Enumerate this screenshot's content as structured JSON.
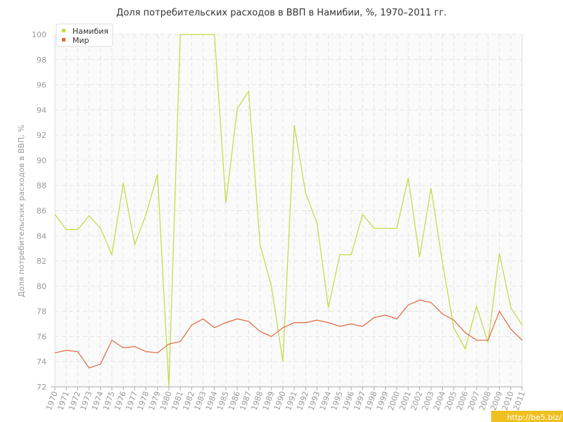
{
  "chart_data": {
    "type": "line",
    "title": "Доля потребительских расходов в ВВП в Намибии, %, 1970–2011 гг.",
    "y_label": "Доля потребительских расходов в ВВП, %",
    "watermark": "http://be5.biz/",
    "x": [
      1970,
      1971,
      1972,
      1973,
      1974,
      1975,
      1976,
      1977,
      1978,
      1979,
      1980,
      1981,
      1982,
      1983,
      1984,
      1985,
      1986,
      1987,
      1988,
      1989,
      1990,
      1991,
      1992,
      1993,
      1994,
      1995,
      1996,
      1997,
      1998,
      1999,
      2000,
      2001,
      2002,
      2003,
      2004,
      2005,
      2006,
      2007,
      2008,
      2009,
      2010,
      2011
    ],
    "series": [
      {
        "name": "Намибия",
        "color": "#bedc3c",
        "values": [
          85.7,
          84.5,
          84.5,
          85.6,
          84.6,
          82.5,
          88.2,
          83.3,
          85.7,
          88.9,
          72,
          100,
          100,
          100,
          100,
          86.6,
          94.1,
          95.5,
          83.3,
          80,
          74,
          92.8,
          87.4,
          85,
          78.3,
          82.5,
          82.5,
          85.7,
          84.6,
          84.6,
          84.6,
          88.6,
          82.3,
          87.8,
          81.9,
          76.7,
          75,
          78.4,
          75.5,
          82.6,
          78.3,
          76.9
        ]
      },
      {
        "name": "Мир",
        "color": "#e0683c",
        "values": [
          74.7,
          74.9,
          74.8,
          73.5,
          73.8,
          75.7,
          75.1,
          75.2,
          74.8,
          74.7,
          75.4,
          75.6,
          76.9,
          77.4,
          76.7,
          77.1,
          77.4,
          77.2,
          76.4,
          76.0,
          76.7,
          77.1,
          77.1,
          77.3,
          77.1,
          76.8,
          77.0,
          76.8,
          77.5,
          77.7,
          77.4,
          78.5,
          78.9,
          78.7,
          77.8,
          77.3,
          76.3,
          75.7,
          75.7,
          78.0,
          76.6,
          75.7
        ]
      }
    ],
    "xlim": [
      1970,
      2011
    ],
    "ylim": [
      72,
      100
    ],
    "yticks": [
      72,
      74,
      76,
      78,
      80,
      82,
      84,
      86,
      88,
      90,
      92,
      94,
      96,
      98,
      100
    ],
    "grid": true,
    "legend": "top-left"
  }
}
